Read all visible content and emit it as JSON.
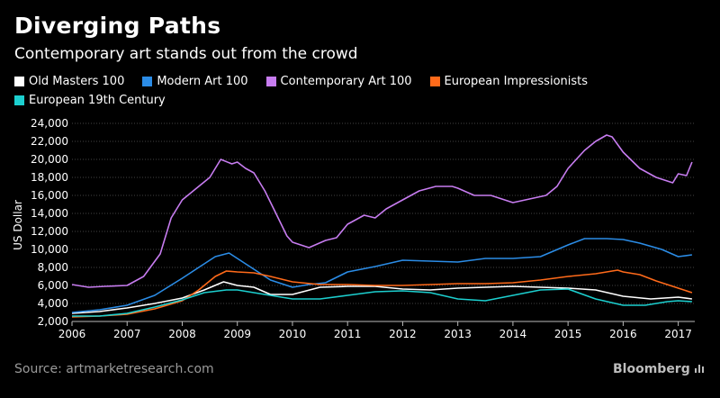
{
  "header": {
    "title": "Diverging Paths",
    "subtitle": "Contemporary art stands out from the crowd"
  },
  "footer": {
    "source": "Source: artmarketresearch.com",
    "brand": "Bloomberg"
  },
  "chart_data": {
    "type": "line",
    "title": "Diverging Paths",
    "subtitle": "Contemporary art stands out from the crowd",
    "xlabel": "",
    "ylabel": "US Dollar",
    "xlim": [
      2006,
      2017.3
    ],
    "ylim": [
      2000,
      24000
    ],
    "x_ticks": [
      2006,
      2007,
      2008,
      2009,
      2010,
      2011,
      2012,
      2013,
      2014,
      2015,
      2016,
      2017
    ],
    "y_ticks": [
      2000,
      4000,
      6000,
      8000,
      10000,
      12000,
      14000,
      16000,
      18000,
      20000,
      22000,
      24000
    ],
    "y_tick_labels": [
      "2,000",
      "4,000",
      "6,000",
      "8,000",
      "10,000",
      "12,000",
      "14,000",
      "16,000",
      "18,000",
      "20,000",
      "22,000",
      "24,000"
    ],
    "x_tick_labels": [
      "2006",
      "2007",
      "2008",
      "2009",
      "2010",
      "2011",
      "2012",
      "2013",
      "2014",
      "2015",
      "2016",
      "2017"
    ],
    "legend_position": "top-left",
    "series": [
      {
        "name": "Old Masters 100",
        "color": "#ffffff",
        "points": [
          [
            2006,
            2900
          ],
          [
            2006.5,
            3100
          ],
          [
            2007,
            3500
          ],
          [
            2007.5,
            4000
          ],
          [
            2008,
            4600
          ],
          [
            2008.4,
            5500
          ],
          [
            2008.75,
            6400
          ],
          [
            2009,
            6000
          ],
          [
            2009.3,
            5800
          ],
          [
            2009.6,
            5000
          ],
          [
            2010,
            5000
          ],
          [
            2010.5,
            5800
          ],
          [
            2011,
            5900
          ],
          [
            2011.5,
            5900
          ],
          [
            2012,
            5600
          ],
          [
            2012.5,
            5500
          ],
          [
            2013,
            5700
          ],
          [
            2013.5,
            5800
          ],
          [
            2014,
            5900
          ],
          [
            2014.5,
            5800
          ],
          [
            2015,
            5700
          ],
          [
            2015.5,
            5500
          ],
          [
            2016,
            4800
          ],
          [
            2016.5,
            4500
          ],
          [
            2017,
            4700
          ],
          [
            2017.25,
            4500
          ]
        ]
      },
      {
        "name": "Modern Art 100",
        "color": "#2b8ce6",
        "points": [
          [
            2006,
            3000
          ],
          [
            2006.5,
            3300
          ],
          [
            2007,
            3800
          ],
          [
            2007.5,
            4900
          ],
          [
            2008,
            6800
          ],
          [
            2008.3,
            8000
          ],
          [
            2008.6,
            9200
          ],
          [
            2008.85,
            9600
          ],
          [
            2009,
            9000
          ],
          [
            2009.3,
            7800
          ],
          [
            2009.6,
            6600
          ],
          [
            2010,
            5800
          ],
          [
            2010.3,
            6100
          ],
          [
            2010.6,
            6300
          ],
          [
            2011,
            7500
          ],
          [
            2011.5,
            8100
          ],
          [
            2012,
            8800
          ],
          [
            2012.5,
            8700
          ],
          [
            2013,
            8600
          ],
          [
            2013.5,
            9000
          ],
          [
            2014,
            9000
          ],
          [
            2014.5,
            9200
          ],
          [
            2015,
            10500
          ],
          [
            2015.3,
            11200
          ],
          [
            2015.7,
            11200
          ],
          [
            2016,
            11100
          ],
          [
            2016.3,
            10700
          ],
          [
            2016.7,
            10000
          ],
          [
            2017,
            9200
          ],
          [
            2017.25,
            9400
          ]
        ]
      },
      {
        "name": "Contemporary Art 100",
        "color": "#c77cf0",
        "points": [
          [
            2006,
            6100
          ],
          [
            2006.3,
            5800
          ],
          [
            2006.6,
            5900
          ],
          [
            2007,
            6000
          ],
          [
            2007.3,
            7000
          ],
          [
            2007.6,
            9500
          ],
          [
            2007.8,
            13500
          ],
          [
            2008,
            15500
          ],
          [
            2008.2,
            16500
          ],
          [
            2008.5,
            18000
          ],
          [
            2008.7,
            20000
          ],
          [
            2008.9,
            19500
          ],
          [
            2009,
            19700
          ],
          [
            2009.15,
            19000
          ],
          [
            2009.3,
            18500
          ],
          [
            2009.5,
            16500
          ],
          [
            2009.7,
            14000
          ],
          [
            2009.9,
            11500
          ],
          [
            2010,
            10800
          ],
          [
            2010.3,
            10200
          ],
          [
            2010.6,
            11000
          ],
          [
            2010.8,
            11300
          ],
          [
            2011,
            12800
          ],
          [
            2011.3,
            13800
          ],
          [
            2011.5,
            13500
          ],
          [
            2011.7,
            14500
          ],
          [
            2012,
            15500
          ],
          [
            2012.3,
            16500
          ],
          [
            2012.6,
            17000
          ],
          [
            2012.9,
            17000
          ],
          [
            2013,
            16800
          ],
          [
            2013.3,
            16000
          ],
          [
            2013.6,
            16000
          ],
          [
            2014,
            15200
          ],
          [
            2014.3,
            15600
          ],
          [
            2014.6,
            16000
          ],
          [
            2014.8,
            17000
          ],
          [
            2015,
            19000
          ],
          [
            2015.3,
            21000
          ],
          [
            2015.5,
            22000
          ],
          [
            2015.7,
            22700
          ],
          [
            2015.8,
            22500
          ],
          [
            2016,
            20800
          ],
          [
            2016.3,
            19000
          ],
          [
            2016.6,
            18000
          ],
          [
            2016.9,
            17400
          ],
          [
            2017,
            18400
          ],
          [
            2017.15,
            18200
          ],
          [
            2017.25,
            19700
          ]
        ]
      },
      {
        "name": "European Impressionists",
        "color": "#ff6a1a",
        "points": [
          [
            2006,
            2500
          ],
          [
            2006.5,
            2600
          ],
          [
            2007,
            2800
          ],
          [
            2007.5,
            3400
          ],
          [
            2008,
            4300
          ],
          [
            2008.3,
            5500
          ],
          [
            2008.6,
            7000
          ],
          [
            2008.8,
            7600
          ],
          [
            2009,
            7500
          ],
          [
            2009.3,
            7400
          ],
          [
            2009.6,
            7000
          ],
          [
            2010,
            6400
          ],
          [
            2010.5,
            6100
          ],
          [
            2011,
            6100
          ],
          [
            2011.5,
            6000
          ],
          [
            2012,
            6000
          ],
          [
            2012.5,
            6100
          ],
          [
            2013,
            6200
          ],
          [
            2013.5,
            6200
          ],
          [
            2014,
            6300
          ],
          [
            2014.5,
            6600
          ],
          [
            2015,
            7000
          ],
          [
            2015.5,
            7300
          ],
          [
            2015.9,
            7700
          ],
          [
            2016,
            7500
          ],
          [
            2016.3,
            7200
          ],
          [
            2016.6,
            6500
          ],
          [
            2017,
            5700
          ],
          [
            2017.25,
            5200
          ]
        ]
      },
      {
        "name": "European 19th Century",
        "color": "#1ccfcf",
        "points": [
          [
            2006,
            2600
          ],
          [
            2006.5,
            2600
          ],
          [
            2007,
            2900
          ],
          [
            2007.5,
            3600
          ],
          [
            2008,
            4400
          ],
          [
            2008.4,
            5200
          ],
          [
            2008.8,
            5500
          ],
          [
            2009,
            5500
          ],
          [
            2009.4,
            5100
          ],
          [
            2009.8,
            4700
          ],
          [
            2010,
            4500
          ],
          [
            2010.5,
            4500
          ],
          [
            2011,
            4900
          ],
          [
            2011.5,
            5300
          ],
          [
            2012,
            5400
          ],
          [
            2012.5,
            5200
          ],
          [
            2013,
            4500
          ],
          [
            2013.5,
            4300
          ],
          [
            2014,
            4900
          ],
          [
            2014.5,
            5500
          ],
          [
            2015,
            5600
          ],
          [
            2015.5,
            4500
          ],
          [
            2016,
            3800
          ],
          [
            2016.4,
            3800
          ],
          [
            2016.8,
            4200
          ],
          [
            2017,
            4300
          ],
          [
            2017.25,
            4200
          ]
        ]
      }
    ]
  }
}
